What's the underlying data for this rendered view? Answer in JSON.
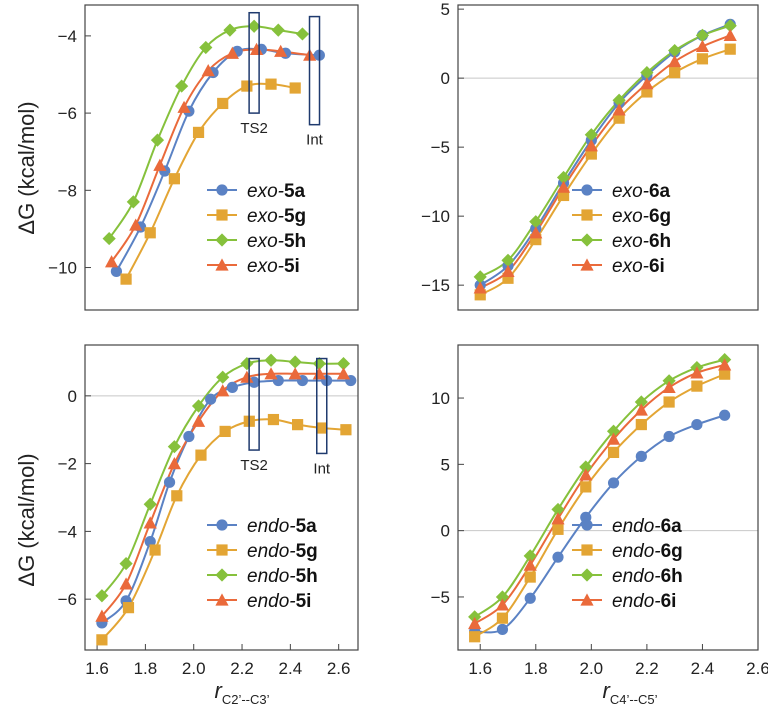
{
  "colors": {
    "a": "#5b82c4",
    "g": "#e3a534",
    "h": "#86c13c",
    "i": "#ea6a3b",
    "frame": "#444444",
    "zero_line": "#c8c8c8",
    "box": "#1f3a6e"
  },
  "y_axis_label": "ΔG (kcal/mol)",
  "x_axis_labels": [
    {
      "main": "r",
      "sub": "C2’--C3’"
    },
    {
      "main": "r",
      "sub": "C4’--C5’"
    }
  ],
  "chart_data": [
    {
      "id": "top-left",
      "type": "line",
      "xlim": [
        1.55,
        2.68
      ],
      "ylim": [
        -11.1,
        -3.2
      ],
      "xticks": [],
      "yticks": [
        -10,
        -8,
        -6,
        -4
      ],
      "zero_line": false,
      "legend": {
        "position": "bottom-right",
        "prefix": "exo-"
      },
      "annotations": [
        {
          "label": "TS2",
          "x": 2.25,
          "y_range": [
            -6.0,
            -3.4
          ]
        },
        {
          "label": "Int",
          "x": 2.5,
          "y_range": [
            -6.3,
            -3.5
          ]
        }
      ],
      "series": [
        {
          "key": "a",
          "name": "exo-5a",
          "prefix": "exo-",
          "id": "5a",
          "marker": "circle",
          "x": [
            1.68,
            1.78,
            1.88,
            1.98,
            2.08,
            2.18,
            2.28,
            2.38,
            2.52
          ],
          "y": [
            -10.1,
            -8.95,
            -7.5,
            -5.95,
            -4.95,
            -4.4,
            -4.35,
            -4.45,
            -4.5
          ]
        },
        {
          "key": "g",
          "name": "exo-5g",
          "prefix": "exo-",
          "id": "5g",
          "marker": "square",
          "x": [
            1.72,
            1.82,
            1.92,
            2.02,
            2.12,
            2.22,
            2.32,
            2.42
          ],
          "y": [
            -10.3,
            -9.1,
            -7.7,
            -6.5,
            -5.75,
            -5.3,
            -5.25,
            -5.35
          ]
        },
        {
          "key": "h",
          "name": "exo-5h",
          "prefix": "exo-",
          "id": "5h",
          "marker": "diamond",
          "x": [
            1.65,
            1.75,
            1.85,
            1.95,
            2.05,
            2.15,
            2.25,
            2.35,
            2.45
          ],
          "y": [
            -9.25,
            -8.3,
            -6.7,
            -5.3,
            -4.3,
            -3.85,
            -3.75,
            -3.85,
            -3.95
          ]
        },
        {
          "key": "i",
          "name": "exo-5i",
          "prefix": "exo-",
          "id": "5i",
          "marker": "triangle",
          "x": [
            1.66,
            1.76,
            1.86,
            1.96,
            2.06,
            2.16,
            2.26,
            2.36,
            2.48
          ],
          "y": [
            -9.85,
            -8.9,
            -7.35,
            -5.85,
            -4.9,
            -4.45,
            -4.35,
            -4.4,
            -4.5
          ]
        }
      ]
    },
    {
      "id": "top-right",
      "type": "line",
      "xlim": [
        1.52,
        2.6
      ],
      "ylim": [
        -16.8,
        5.3
      ],
      "xticks": [],
      "yticks": [
        -15,
        -10,
        -5,
        0,
        5
      ],
      "zero_line": true,
      "legend": {
        "position": "bottom-right",
        "prefix": "exo-"
      },
      "annotations": [],
      "series": [
        {
          "key": "a",
          "name": "exo-6a",
          "prefix": "exo-",
          "id": "6a",
          "marker": "circle",
          "x": [
            1.6,
            1.7,
            1.8,
            1.9,
            2.0,
            2.1,
            2.2,
            2.3,
            2.4,
            2.5
          ],
          "y": [
            -15.0,
            -13.6,
            -10.9,
            -7.6,
            -4.5,
            -1.8,
            0.2,
            1.9,
            3.1,
            3.9
          ]
        },
        {
          "key": "g",
          "name": "exo-6g",
          "prefix": "exo-",
          "id": "6g",
          "marker": "square",
          "x": [
            1.6,
            1.7,
            1.8,
            1.9,
            2.0,
            2.1,
            2.2,
            2.3,
            2.4,
            2.5
          ],
          "y": [
            -15.7,
            -14.5,
            -11.7,
            -8.5,
            -5.5,
            -2.9,
            -1.0,
            0.4,
            1.4,
            2.1
          ]
        },
        {
          "key": "h",
          "name": "exo-6h",
          "prefix": "exo-",
          "id": "6h",
          "marker": "diamond",
          "x": [
            1.6,
            1.7,
            1.8,
            1.9,
            2.0,
            2.1,
            2.2,
            2.3,
            2.4,
            2.5
          ],
          "y": [
            -14.4,
            -13.2,
            -10.4,
            -7.2,
            -4.1,
            -1.6,
            0.4,
            2.0,
            3.1,
            3.8
          ]
        },
        {
          "key": "i",
          "name": "exo-6i",
          "prefix": "exo-",
          "id": "6i",
          "marker": "triangle",
          "x": [
            1.6,
            1.7,
            1.8,
            1.9,
            2.0,
            2.1,
            2.2,
            2.3,
            2.4,
            2.5
          ],
          "y": [
            -15.2,
            -14.0,
            -11.2,
            -7.9,
            -4.9,
            -2.3,
            -0.4,
            1.2,
            2.3,
            3.1
          ]
        }
      ]
    },
    {
      "id": "bottom-left",
      "type": "line",
      "xlim": [
        1.55,
        2.68
      ],
      "ylim": [
        -7.5,
        1.5
      ],
      "xticks": [
        1.6,
        1.8,
        2.0,
        2.2,
        2.4,
        2.6
      ],
      "yticks": [
        -6,
        -4,
        -2,
        0
      ],
      "zero_line": true,
      "legend": {
        "position": "bottom-right",
        "prefix": "endo-"
      },
      "annotations": [
        {
          "label": "TS2",
          "x": 2.25,
          "y_range": [
            -1.6,
            1.1
          ]
        },
        {
          "label": "Int",
          "x": 2.53,
          "y_range": [
            -1.7,
            1.1
          ]
        }
      ],
      "series": [
        {
          "key": "a",
          "name": "endo-5a",
          "prefix": "endo-",
          "id": "5a",
          "marker": "circle",
          "x": [
            1.62,
            1.72,
            1.82,
            1.9,
            1.98,
            2.07,
            2.16,
            2.25,
            2.35,
            2.45,
            2.55,
            2.65
          ],
          "y": [
            -6.7,
            -6.05,
            -4.3,
            -2.55,
            -1.2,
            -0.1,
            0.25,
            0.4,
            0.45,
            0.45,
            0.45,
            0.45
          ]
        },
        {
          "key": "g",
          "name": "endo-5g",
          "prefix": "endo-",
          "id": "5g",
          "marker": "square",
          "x": [
            1.62,
            1.73,
            1.84,
            1.93,
            2.03,
            2.13,
            2.23,
            2.33,
            2.43,
            2.53,
            2.63
          ],
          "y": [
            -7.2,
            -6.25,
            -4.55,
            -2.95,
            -1.75,
            -1.05,
            -0.75,
            -0.7,
            -0.85,
            -0.95,
            -1.0
          ]
        },
        {
          "key": "h",
          "name": "endo-5h",
          "prefix": "endo-",
          "id": "5h",
          "marker": "diamond",
          "x": [
            1.62,
            1.72,
            1.82,
            1.92,
            2.02,
            2.12,
            2.22,
            2.32,
            2.42,
            2.52,
            2.62
          ],
          "y": [
            -5.9,
            -4.95,
            -3.2,
            -1.5,
            -0.3,
            0.55,
            0.95,
            1.05,
            1.0,
            0.95,
            0.95
          ]
        },
        {
          "key": "i",
          "name": "endo-5i",
          "prefix": "endo-",
          "id": "5i",
          "marker": "triangle",
          "x": [
            1.62,
            1.72,
            1.82,
            1.92,
            2.02,
            2.12,
            2.22,
            2.32,
            2.42,
            2.52,
            2.62
          ],
          "y": [
            -6.5,
            -5.55,
            -3.75,
            -2.0,
            -0.75,
            0.15,
            0.55,
            0.65,
            0.65,
            0.65,
            0.65
          ]
        }
      ]
    },
    {
      "id": "bottom-right",
      "type": "line",
      "xlim": [
        1.52,
        2.6
      ],
      "ylim": [
        -9.0,
        14.0
      ],
      "xticks": [
        1.6,
        1.8,
        2.0,
        2.2,
        2.4,
        2.6
      ],
      "yticks": [
        -5,
        0,
        5,
        10
      ],
      "zero_line": true,
      "legend": {
        "position": "bottom-right",
        "prefix": "endo-"
      },
      "annotations": [],
      "series": [
        {
          "key": "a",
          "name": "endo-6a",
          "prefix": "endo-",
          "id": "6a",
          "marker": "circle",
          "x": [
            1.58,
            1.68,
            1.78,
            1.88,
            1.98,
            2.08,
            2.18,
            2.28,
            2.38,
            2.48
          ],
          "y": [
            -7.6,
            -7.45,
            -5.1,
            -2.0,
            1.0,
            3.6,
            5.6,
            7.1,
            8.0,
            8.7
          ]
        },
        {
          "key": "g",
          "name": "endo-6g",
          "prefix": "endo-",
          "id": "6g",
          "marker": "square",
          "x": [
            1.58,
            1.68,
            1.78,
            1.88,
            1.98,
            2.08,
            2.18,
            2.28,
            2.38,
            2.48
          ],
          "y": [
            -8.0,
            -6.6,
            -3.5,
            0.1,
            3.3,
            5.9,
            8.0,
            9.7,
            10.9,
            11.8
          ]
        },
        {
          "key": "h",
          "name": "endo-6h",
          "prefix": "endo-",
          "id": "6h",
          "marker": "diamond",
          "x": [
            1.58,
            1.68,
            1.78,
            1.88,
            1.98,
            2.08,
            2.18,
            2.28,
            2.38,
            2.48
          ],
          "y": [
            -6.5,
            -5.0,
            -1.9,
            1.6,
            4.8,
            7.5,
            9.7,
            11.3,
            12.3,
            12.9
          ]
        },
        {
          "key": "i",
          "name": "endo-6i",
          "prefix": "endo-",
          "id": "6i",
          "marker": "triangle",
          "x": [
            1.58,
            1.68,
            1.78,
            1.88,
            1.98,
            2.08,
            2.18,
            2.28,
            2.38,
            2.48
          ],
          "y": [
            -7.0,
            -5.6,
            -2.6,
            0.9,
            4.2,
            6.9,
            9.1,
            10.8,
            11.9,
            12.5
          ]
        }
      ]
    }
  ]
}
